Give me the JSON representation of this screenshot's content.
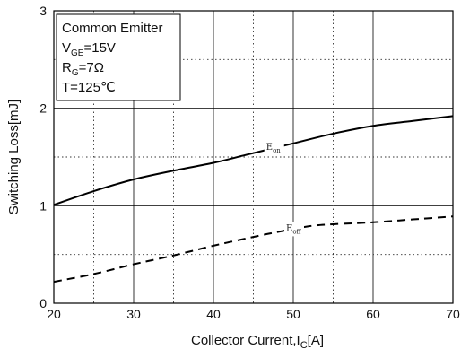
{
  "chart_data": {
    "type": "line",
    "xlabel": "Collector Current,",
    "xlabel_symbol": "I",
    "xlabel_subscript": "C",
    "xlabel_unit": "[A]",
    "ylabel": "Switching Loss[mJ]",
    "xlim": [
      20,
      70
    ],
    "ylim": [
      0,
      3
    ],
    "x_ticks": [
      20,
      30,
      40,
      50,
      60,
      70
    ],
    "y_ticks": [
      0,
      1,
      2,
      3
    ],
    "x_minor_ticks": [
      25,
      35,
      45,
      55,
      65
    ],
    "y_minor_ticks": [
      0.5,
      1.5,
      2.5
    ],
    "grid": true,
    "legend_box": {
      "placement": "top-left",
      "lines": [
        {
          "main": "Common Emitter",
          "sub": "",
          "rest": ""
        },
        {
          "main": "V",
          "sub": "GE",
          "rest": "=15V"
        },
        {
          "main": "R",
          "sub": "G",
          "rest": "=7Ω"
        },
        {
          "main": "T=125℃",
          "sub": "",
          "rest": ""
        }
      ]
    },
    "series": [
      {
        "label_main": "E",
        "label_sub": "on",
        "style": "solid",
        "label_at_x": 47.5,
        "x": [
          20,
          25,
          30,
          35,
          40,
          44,
          47,
          50,
          55,
          60,
          65,
          70
        ],
        "y": [
          1.01,
          1.15,
          1.27,
          1.36,
          1.44,
          1.52,
          1.58,
          1.64,
          1.74,
          1.82,
          1.87,
          1.92
        ]
      },
      {
        "label_main": "E",
        "label_sub": "off",
        "style": "dashed",
        "label_at_x": 50,
        "x": [
          20,
          25,
          30,
          35,
          40,
          45,
          48,
          52,
          55,
          60,
          65,
          70
        ],
        "y": [
          0.22,
          0.3,
          0.4,
          0.49,
          0.59,
          0.68,
          0.73,
          0.79,
          0.81,
          0.83,
          0.86,
          0.89
        ]
      }
    ]
  }
}
